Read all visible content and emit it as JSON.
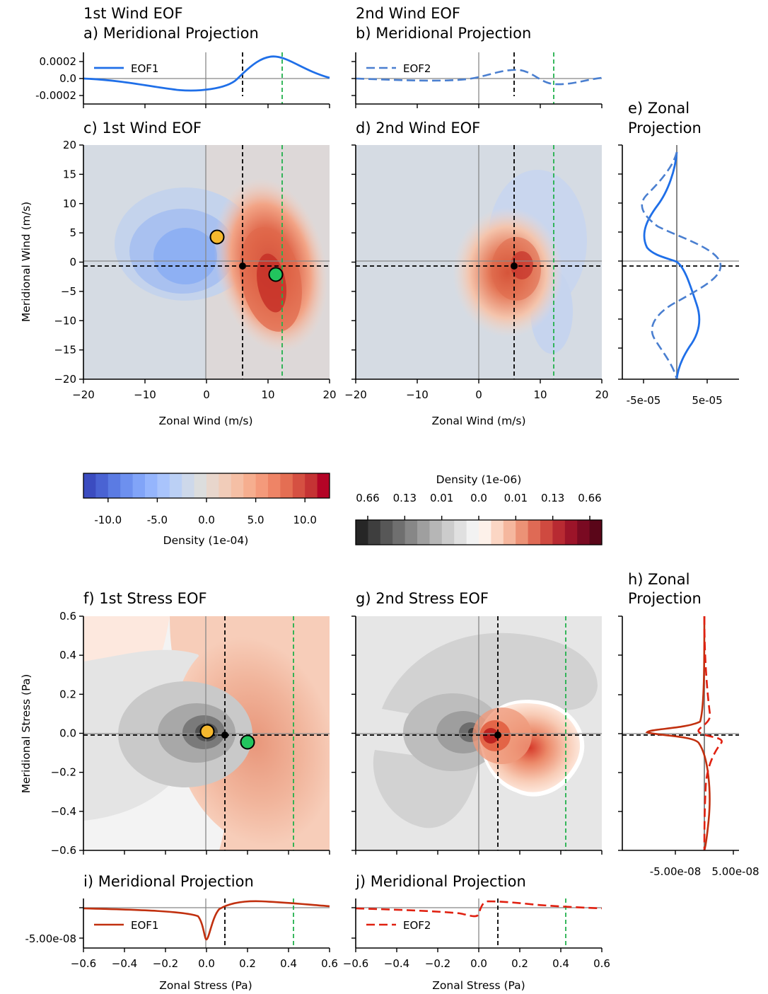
{
  "figure": {
    "wind_title_line1": "1st Wind EOF",
    "wind_title_line2": "2nd Wind EOF",
    "panel_a_title": "a) Meridional Projection",
    "panel_b_title": "b) Meridional Projection",
    "panel_c_title": "c) 1st Wind EOF",
    "panel_d_title": "d) 2nd Wind EOF",
    "panel_e_title_1": "e) Zonal",
    "panel_e_title_2": "Projection",
    "panel_f_title": "f) 1st Stress EOF",
    "panel_g_title": "g) 2nd Stress EOF",
    "panel_h_title_1": "h) Zonal",
    "panel_h_title_2": "Projection",
    "panel_i_title": "i) Meridional Projection",
    "panel_j_title": "j) Meridional Projection",
    "legend_eof1": "EOF1",
    "legend_eof2": "EOF2",
    "wind_xlabel": "Zonal Wind (m/s)",
    "wind_ylabel": "Meridional Wind (m/s)",
    "stress_xlabel": "Zonal Stress (Pa)",
    "stress_ylabel": "Meridional Stress (Pa)",
    "cbar1_label": "Density (1e-04)",
    "cbar2_label": "Density (1e-06)"
  },
  "colors": {
    "eof1_wind": "#1f6fe8",
    "eof2_wind": "#4a7fd0",
    "eof_stress": "#c1300f",
    "eof2_stress": "#e02010",
    "green_marker": "#22c55e",
    "orange_marker": "#f5b82e",
    "green_line": "#22b14c",
    "background_neutral": "#d5dbe3",
    "stress_background": "#e6e6e6"
  },
  "chart_data": [
    {
      "panel": "a",
      "type": "line",
      "title": "a) Meridional Projection",
      "xlim": [
        -20,
        20
      ],
      "ylim": [
        -0.0002,
        0.0002
      ],
      "yticks": [
        "0.0002",
        "0.0",
        "-0.0002"
      ],
      "series": [
        {
          "name": "EOF1",
          "x": [
            -20,
            -12,
            -6,
            -2,
            2,
            5,
            8,
            11,
            14,
            17,
            20
          ],
          "y": [
            0,
            -3e-05,
            -9e-05,
            -0.00011,
            -0.0001,
            -4e-05,
            0.00011,
            0.00022,
            0.00015,
            4e-05,
            0
          ]
        }
      ],
      "vlines": {
        "black_dashed": 5.7,
        "green_dashed": 12.2,
        "gray": 0
      }
    },
    {
      "panel": "b",
      "type": "line",
      "title": "b) Meridional Projection",
      "xlim": [
        -20,
        20
      ],
      "series": [
        {
          "name": "EOF2",
          "x": [
            -20,
            -10,
            -4,
            0,
            3,
            6,
            9,
            11,
            13,
            16,
            20
          ],
          "y": [
            0,
            -1e-05,
            -2e-05,
            0,
            5e-05,
            0.0001,
            6e-05,
            -3e-05,
            -6e-05,
            -3e-05,
            0
          ]
        }
      ],
      "vlines": {
        "black_dashed": 5.7,
        "green_dashed": 12.2,
        "gray": 0
      }
    },
    {
      "panel": "c",
      "type": "heatmap",
      "title": "c) 1st Wind EOF",
      "xlim": [
        -20,
        20
      ],
      "ylim": [
        -20,
        20
      ],
      "xticks": [
        "−20",
        "−10",
        "0",
        "10",
        "20"
      ],
      "yticks": [
        "20",
        "15",
        "10",
        "5",
        "0",
        "−5",
        "−10",
        "−15",
        "−20"
      ],
      "blobs": [
        {
          "x": 11,
          "y": -3,
          "sign": "positive"
        },
        {
          "x": 0,
          "y": 4,
          "sign": "negative"
        }
      ],
      "markers": [
        {
          "x": 1.8,
          "y": 4.3,
          "color": "orange"
        },
        {
          "x": 11.2,
          "y": -2.2,
          "color": "green"
        },
        {
          "x": 5.7,
          "y": -0.8,
          "color": "black"
        }
      ],
      "hlines": {
        "black_dashed": -0.8,
        "gray": 0
      },
      "vlines": {
        "black_dashed": 5.7,
        "green_dashed": 12.2,
        "gray": 0
      }
    },
    {
      "panel": "d",
      "type": "heatmap",
      "title": "d) 2nd Wind EOF",
      "xlim": [
        -20,
        20
      ],
      "ylim": [
        -20,
        20
      ],
      "xticks": [
        "−20",
        "−10",
        "0",
        "10",
        "20"
      ],
      "blobs": [
        {
          "x": 6,
          "y": -1,
          "sign": "positive"
        }
      ],
      "markers": [
        {
          "x": 5.7,
          "y": -0.8,
          "color": "black"
        }
      ],
      "hlines": {
        "black_dashed": -0.8,
        "gray": 0
      },
      "vlines": {
        "black_dashed": 5.7,
        "green_dashed": 12.2,
        "gray": 0
      }
    },
    {
      "panel": "e",
      "type": "line",
      "title": "e) Zonal Projection",
      "xticks": [
        "-5e-05",
        "5e-05"
      ],
      "series": [
        {
          "name": "EOF1",
          "y": [
            18,
            12,
            8,
            5,
            2,
            0,
            -2,
            -5,
            -9,
            -13,
            -17,
            -20
          ],
          "x": [
            0,
            -2e-05,
            -5e-05,
            -7e-05,
            -5e-05,
            0,
            2e-05,
            4e-05,
            5e-05,
            2e-05,
            5e-06,
            0
          ]
        },
        {
          "name": "EOF2",
          "y": [
            18,
            12,
            9,
            6,
            3,
            0,
            -2,
            -5,
            -9,
            -12,
            -15,
            -20
          ],
          "x": [
            0,
            -4e-05,
            -8e-05,
            -4e-05,
            4e-05,
            9e-05,
            7e-05,
            -2e-05,
            -6e-05,
            -6e-05,
            -2e-05,
            0
          ]
        }
      ],
      "hlines": {
        "black_dashed": -0.8,
        "gray": 0
      }
    },
    {
      "panel": "f",
      "type": "heatmap",
      "title": "f) 1st Stress EOF",
      "xlim": [
        -0.6,
        0.6
      ],
      "ylim": [
        -0.6,
        0.6
      ],
      "yticks": [
        "0.6",
        "0.4",
        "0.2",
        "0.0",
        "−0.2",
        "−0.4",
        "−0.6"
      ],
      "markers": [
        {
          "x": 0.0,
          "y": 0.01,
          "color": "orange"
        },
        {
          "x": 0.2,
          "y": -0.05,
          "color": "green"
        },
        {
          "x": 0.09,
          "y": -0.005,
          "color": "black"
        }
      ],
      "hlines": {
        "black_dashed": -0.005,
        "gray": 0
      },
      "vlines": {
        "black_dashed": 0.09,
        "green_dashed": 0.42,
        "gray": 0
      }
    },
    {
      "panel": "g",
      "type": "heatmap",
      "title": "g) 2nd Stress EOF",
      "xlim": [
        -0.6,
        0.6
      ],
      "ylim": [
        -0.6,
        0.6
      ],
      "markers": [
        {
          "x": 0.09,
          "y": -0.005,
          "color": "black"
        }
      ],
      "hlines": {
        "black_dashed": -0.005,
        "gray": 0
      },
      "vlines": {
        "black_dashed": 0.09,
        "green_dashed": 0.42,
        "gray": 0
      }
    },
    {
      "panel": "h",
      "type": "line",
      "title": "h) Zonal Projection",
      "xticks": [
        "-5.00e-08",
        "5.00e-08"
      ],
      "series": [
        {
          "name": "EOF1",
          "y": [
            0.6,
            0.3,
            0.1,
            0.03,
            0.01,
            0,
            -0.02,
            -0.06,
            -0.15,
            -0.3,
            -0.6
          ],
          "x": [
            0,
            -5e-09,
            -2e-08,
            -5e-08,
            -9e-08,
            -5e-08,
            1e-08,
            2e-08,
            1e-08,
            5e-09,
            0
          ]
        },
        {
          "name": "EOF2",
          "y": [
            0.6,
            0.3,
            0.1,
            0.03,
            0,
            -0.02,
            -0.05,
            -0.1,
            -0.3,
            -0.6
          ],
          "x": [
            0,
            2e-09,
            1e-08,
            -2e-08,
            -1e-08,
            3e-08,
            2e-08,
            5e-09,
            0,
            0
          ]
        }
      ],
      "hlines": {
        "black_dashed": -0.005,
        "gray": 0
      }
    },
    {
      "panel": "i",
      "type": "line",
      "title": "i) Meridional Projection",
      "xlim": [
        -0.6,
        0.6
      ],
      "xticks": [
        "−0.6",
        "−0.4",
        "−0.2",
        "0.0",
        "0.2",
        "0.4",
        "0.6"
      ],
      "yticks": [
        "-5.00e-08"
      ],
      "series": [
        {
          "name": "EOF1",
          "x": [
            -0.6,
            -0.3,
            -0.1,
            -0.04,
            -0.01,
            0.0,
            0.02,
            0.06,
            0.15,
            0.3,
            0.6
          ],
          "y": [
            0,
            -3e-09,
            -1e-08,
            -2e-08,
            -4e-08,
            -5.5e-08,
            -2e-08,
            3e-09,
            1e-08,
            8e-09,
            2e-09
          ]
        }
      ],
      "vlines": {
        "black_dashed": 0.09,
        "green_dashed": 0.42,
        "gray": 0
      }
    },
    {
      "panel": "j",
      "type": "line",
      "title": "j) Meridional Projection",
      "xlim": [
        -0.6,
        0.6
      ],
      "xticks": [
        "−0.6",
        "−0.4",
        "−0.2",
        "0.0",
        "0.2",
        "0.4",
        "0.6"
      ],
      "series": [
        {
          "name": "EOF2",
          "x": [
            -0.6,
            -0.3,
            -0.1,
            -0.02,
            0.0,
            0.02,
            0.08,
            0.2,
            0.4,
            0.6
          ],
          "y": [
            0,
            -3e-09,
            -7e-09,
            -1e-08,
            -3e-09,
            1e-08,
            1e-08,
            7e-09,
            3e-09,
            0
          ]
        }
      ],
      "vlines": {
        "black_dashed": 0.09,
        "green_dashed": 0.42,
        "gray": 0
      }
    },
    {
      "panel": "colorbar1",
      "type": "colorbar",
      "label": "Density (1e-04)",
      "ticks": [
        "-10.0",
        "-5.0",
        "0.0",
        "5.0",
        "10.0"
      ],
      "range": [
        -12.5,
        12.5
      ]
    },
    {
      "panel": "colorbar2",
      "type": "colorbar",
      "label": "Density (1e-06)",
      "ticks": [
        "0.66",
        "0.13",
        "0.01",
        "0.0",
        "0.01",
        "0.13",
        "0.66"
      ]
    }
  ]
}
